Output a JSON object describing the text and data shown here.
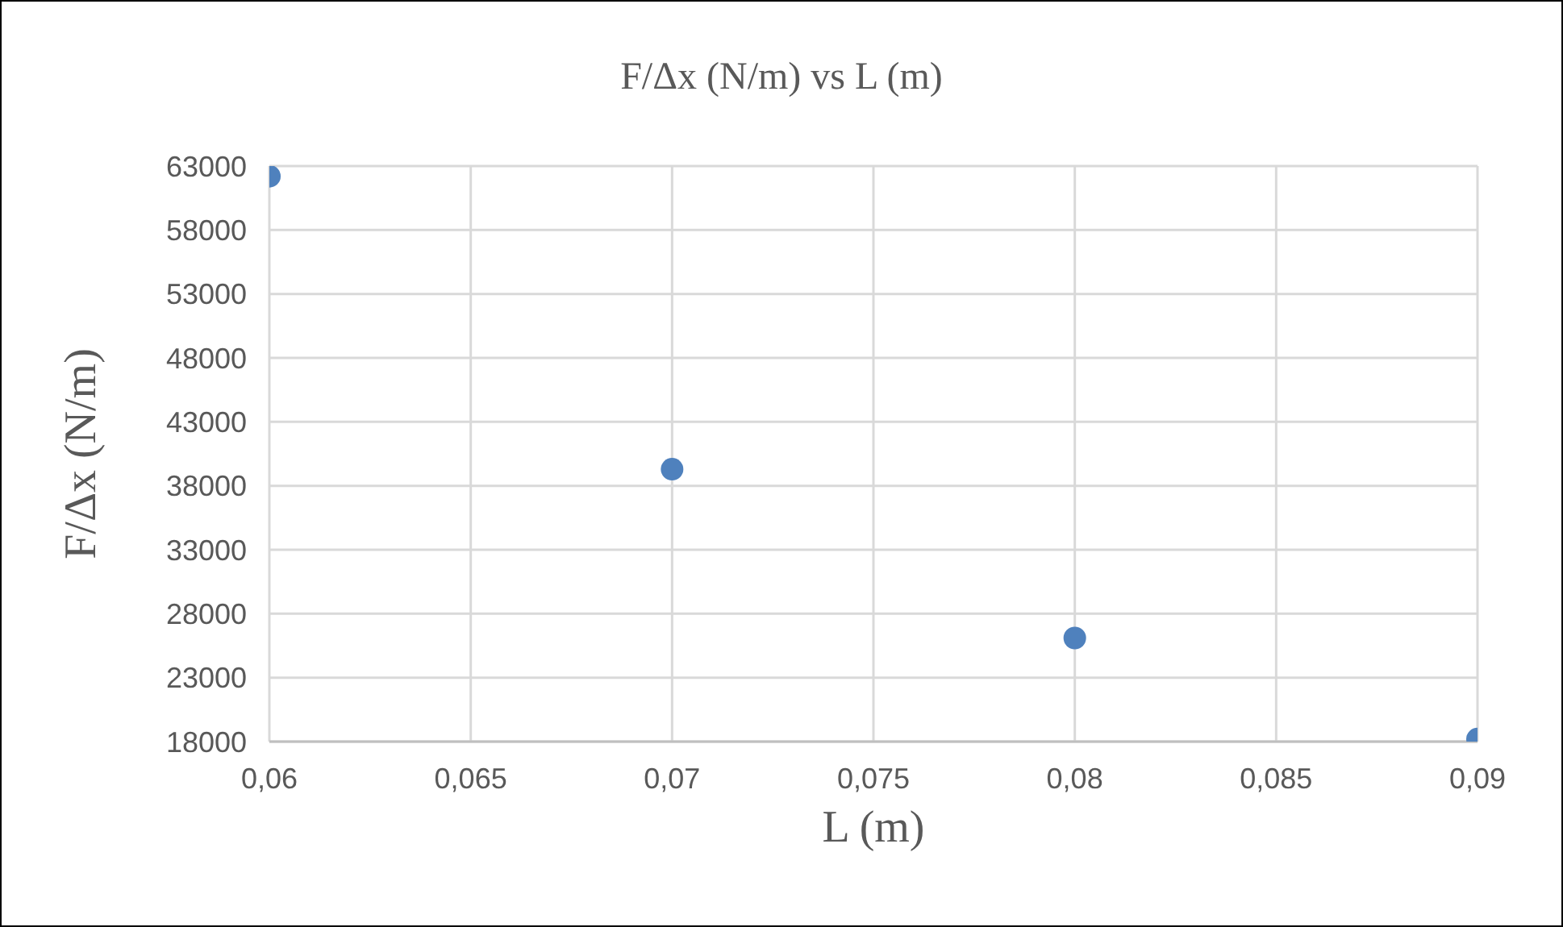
{
  "chart_data": {
    "type": "scatter",
    "title": "F/Δx (N/m) vs L (m)",
    "xlabel": "L (m)",
    "ylabel": "F/Δx (N/m)",
    "x": [
      0.06,
      0.07,
      0.08,
      0.09
    ],
    "series": [
      {
        "color": "#4f81bd",
        "values": [
          62200,
          39300,
          26100,
          18200
        ]
      }
    ],
    "xlim": [
      0.06,
      0.09
    ],
    "xticks": [
      {
        "value": 0.06,
        "label": "0,06"
      },
      {
        "value": 0.065,
        "label": "0,065"
      },
      {
        "value": 0.07,
        "label": "0,07"
      },
      {
        "value": 0.075,
        "label": "0,075"
      },
      {
        "value": 0.08,
        "label": "0,08"
      },
      {
        "value": 0.085,
        "label": "0,085"
      },
      {
        "value": 0.09,
        "label": "0,09"
      }
    ],
    "ylim": [
      18000,
      63000
    ],
    "yticks": [
      18000,
      23000,
      28000,
      33000,
      38000,
      43000,
      48000,
      53000,
      58000,
      63000
    ],
    "grid": true,
    "marker": "circle"
  }
}
